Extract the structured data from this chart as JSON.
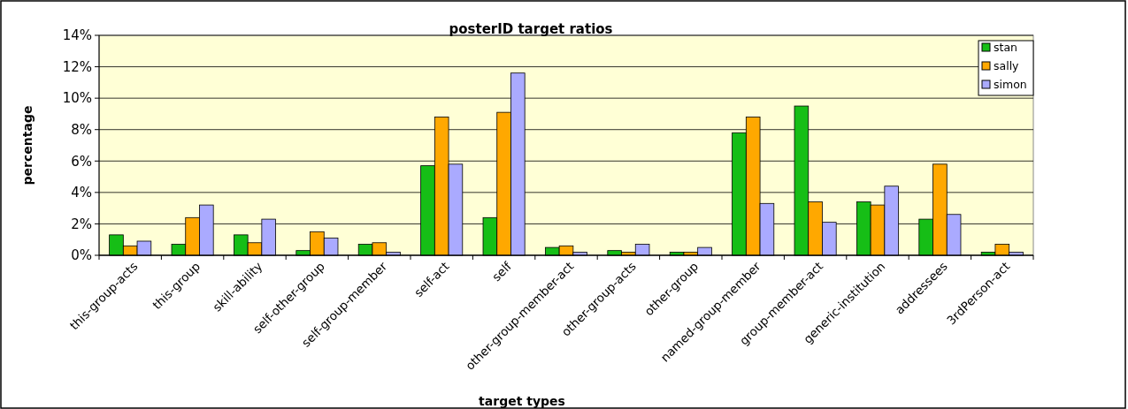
{
  "chart_data": {
    "type": "bar",
    "title": "posterID target ratios",
    "xlabel": "target types",
    "ylabel": "percentage",
    "categories": [
      "this-group-acts",
      "this-group",
      "skill-ability",
      "self-other-group",
      "self-group-member",
      "self-act",
      "self",
      "other-group-member-act",
      "other-group-acts",
      "other-group",
      "named-group-member",
      "group-member-act",
      "generic-institution",
      "addressees",
      "3rdPerson-act"
    ],
    "series": [
      {
        "name": "stan",
        "color": "#16be16",
        "values": [
          1.3,
          0.7,
          1.3,
          0.3,
          0.7,
          5.7,
          2.4,
          0.5,
          0.3,
          0.2,
          7.8,
          9.5,
          3.4,
          2.3,
          0.2
        ]
      },
      {
        "name": "sally",
        "color": "#ffa800",
        "values": [
          0.6,
          2.4,
          0.8,
          1.5,
          0.8,
          8.8,
          9.1,
          0.6,
          0.2,
          0.2,
          8.8,
          3.4,
          3.2,
          5.8,
          0.7
        ]
      },
      {
        "name": "simon",
        "color": "#aaaaff",
        "values": [
          0.9,
          3.2,
          2.3,
          1.1,
          0.2,
          5.8,
          11.6,
          0.2,
          0.7,
          0.5,
          3.3,
          2.1,
          4.4,
          2.6,
          0.2
        ]
      }
    ],
    "ylim": [
      0,
      14
    ],
    "yticks": [
      {
        "value": 0,
        "label": "0%"
      },
      {
        "value": 2,
        "label": "2%"
      },
      {
        "value": 4,
        "label": "4%"
      },
      {
        "value": 6,
        "label": "6%"
      },
      {
        "value": 8,
        "label": "8%"
      },
      {
        "value": 10,
        "label": "10%"
      },
      {
        "value": 12,
        "label": "12%"
      },
      {
        "value": 14,
        "label": "14%"
      }
    ],
    "grid": "y",
    "legend": "top right"
  }
}
